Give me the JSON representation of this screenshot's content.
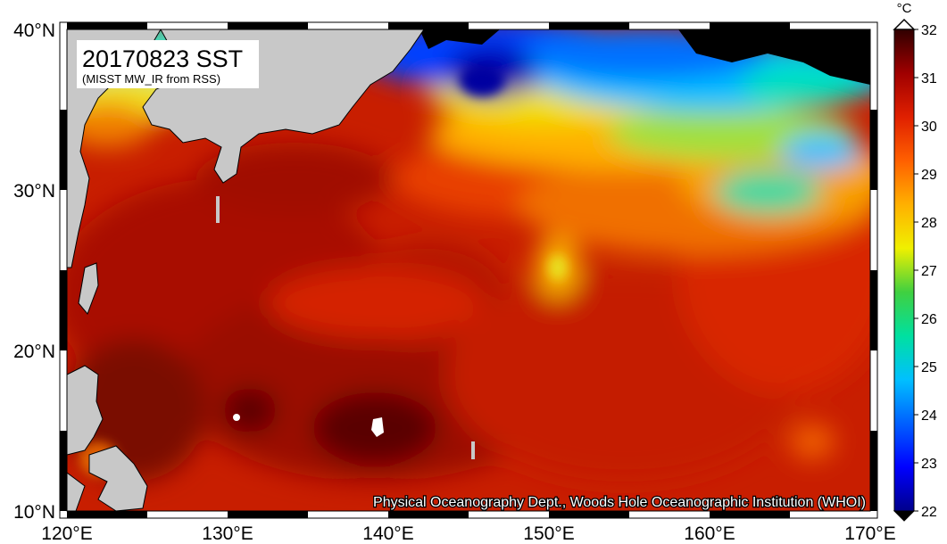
{
  "title": "20170823 SST",
  "subtitle": "(MISST MW_IR from RSS)",
  "credit": "Physical Oceanography Dept., Woods Hole Oceanographic Institution (WHOI)",
  "unit": "°C",
  "lon_ticks": [
    "120°E",
    "130°E",
    "140°E",
    "150°E",
    "160°E",
    "170°E"
  ],
  "lat_ticks": [
    "40°N",
    "30°N",
    "20°N",
    "10°N"
  ],
  "colorbar": {
    "min": 22,
    "max": 32,
    "labels": [
      "32",
      "31",
      "30",
      "29",
      "28",
      "27",
      "26",
      "25",
      "24",
      "23",
      "22"
    ],
    "colors": [
      "#00008b",
      "#0000ff",
      "#0060ff",
      "#00c0ff",
      "#00e0a0",
      "#40d040",
      "#f0f000",
      "#ffb000",
      "#ff6000",
      "#e02000",
      "#a00000",
      "#300000"
    ]
  },
  "colors": {
    "land": "#c8c8c8",
    "ocean_warm": "#c81e00",
    "ocean_hot": "#8a0a00"
  }
}
